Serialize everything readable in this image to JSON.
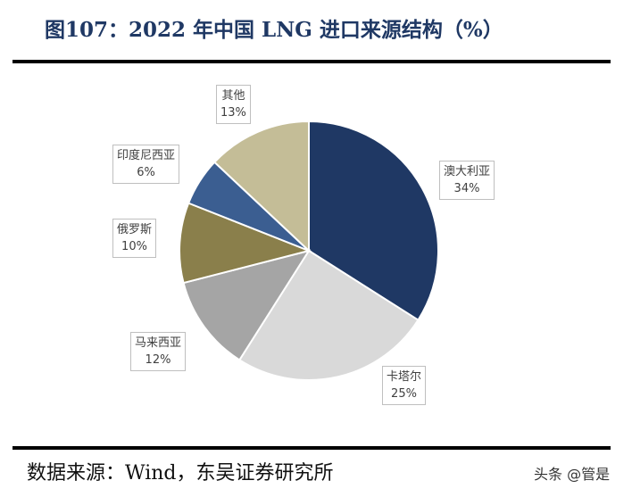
{
  "title": "图107：2022 年中国 LNG 进口来源结构（%）",
  "source": "数据来源：Wind，东吴证券研究所",
  "watermark": "头条 @管是",
  "chart_data": {
    "type": "pie",
    "title": "",
    "start": "top, clockwise",
    "slices": [
      {
        "label": "澳大利亚",
        "value": 34,
        "pct": "34%",
        "color": "#1f3864"
      },
      {
        "label": "卡塔尔",
        "value": 25,
        "pct": "25%",
        "color": "#d9d9d9"
      },
      {
        "label": "马来西亚",
        "value": 12,
        "pct": "12%",
        "color": "#a5a5a5"
      },
      {
        "label": "俄罗斯",
        "value": 10,
        "pct": "10%",
        "color": "#8a7f4b"
      },
      {
        "label": "印度尼西亚",
        "value": 6,
        "pct": "6%",
        "color": "#3b5e91"
      },
      {
        "label": "其他",
        "value": 13,
        "pct": "13%",
        "color": "#c4bd97"
      }
    ]
  }
}
